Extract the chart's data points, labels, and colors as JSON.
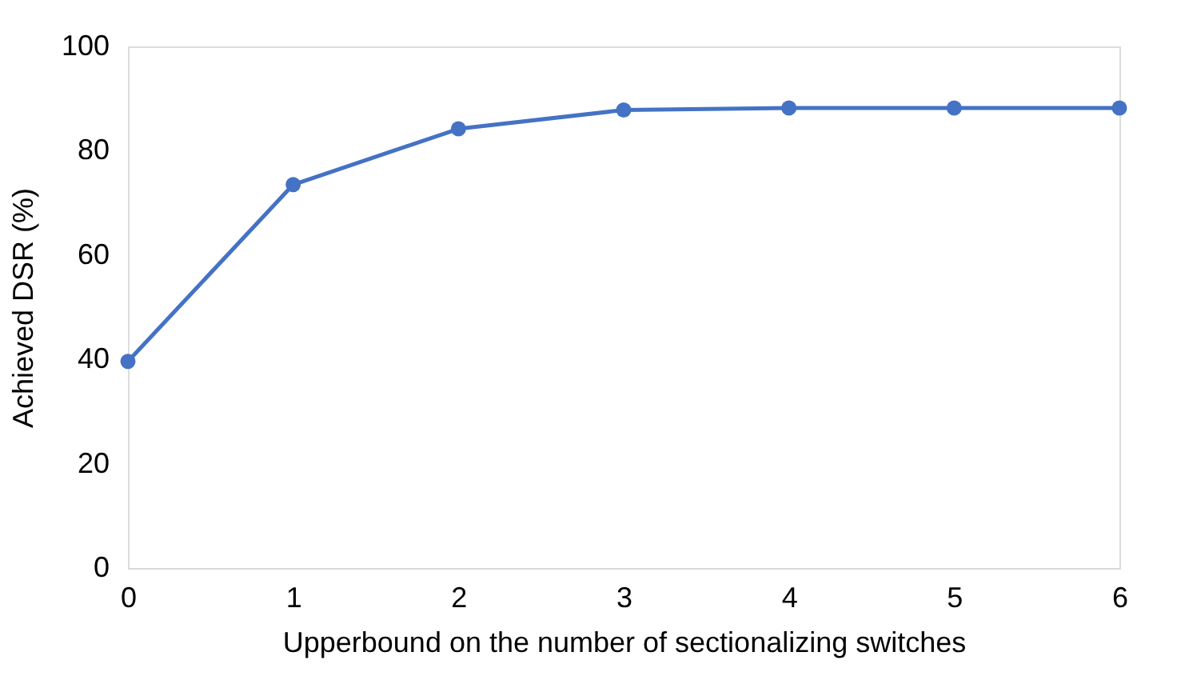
{
  "chart_data": {
    "type": "line",
    "xlabel": "Upperbound on the number of sectionalizing switches",
    "ylabel": "Achieved DSR (%)",
    "x": [
      0,
      1,
      2,
      3,
      4,
      5,
      6
    ],
    "series": [
      {
        "color": "#4472c4",
        "values": [
          39.6,
          73.5,
          84.2,
          87.8,
          88.2,
          88.2,
          88.2
        ]
      }
    ],
    "xlim": [
      0,
      6
    ],
    "xticks": [
      0,
      1,
      2,
      3,
      4,
      5,
      6
    ],
    "ylim": [
      0,
      100
    ],
    "yticks": [
      0,
      20,
      40,
      60,
      80,
      100
    ],
    "grid": false,
    "marker": "circle",
    "line_style": "solid"
  }
}
